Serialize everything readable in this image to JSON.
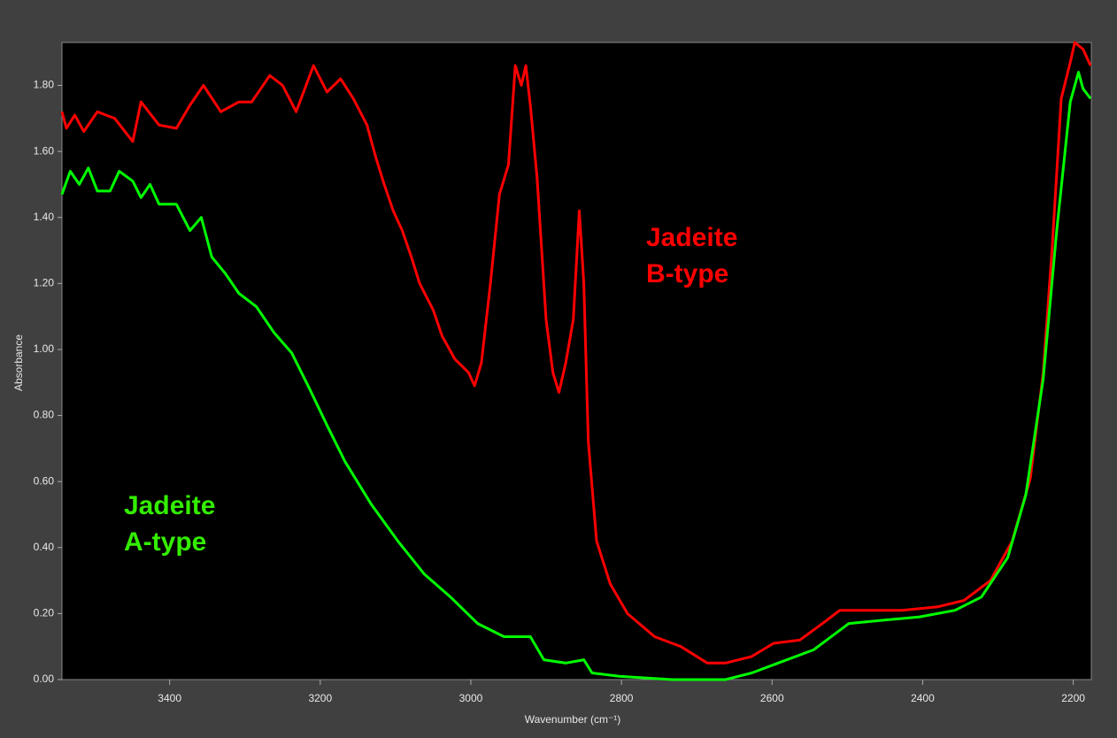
{
  "chart_data": {
    "type": "line",
    "x_label": "Wavenumber (cm⁻¹)",
    "y_label": "Absorbance",
    "xlim": [
      3543,
      2176
    ],
    "ylim": [
      0,
      1.93
    ],
    "xticks": [
      3400,
      3200,
      3000,
      2800,
      2600,
      2400,
      2200
    ],
    "yticks": [
      {
        "value": 0,
        "label": "0.00"
      },
      {
        "value": 0.2,
        "label": "0.20"
      },
      {
        "value": 0.4,
        "label": "0.40"
      },
      {
        "value": 0.6,
        "label": "0.60"
      },
      {
        "value": 0.8,
        "label": "0.80"
      },
      {
        "value": 1.0,
        "label": "1.00"
      },
      {
        "value": 1.2,
        "label": "1.20"
      },
      {
        "value": 1.4,
        "label": "1.40"
      },
      {
        "value": 1.6,
        "label": "1.60"
      },
      {
        "value": 1.8,
        "label": "1.80"
      }
    ],
    "series": [
      {
        "color": "#ff0000",
        "x": [
          3543,
          3537,
          3526,
          3514,
          3496,
          3473,
          3449,
          3438,
          3414,
          3391,
          3373,
          3355,
          3332,
          3308,
          3291,
          3267,
          3250,
          3232,
          3209,
          3191,
          3173,
          3156,
          3138,
          3126,
          3115,
          3103,
          3091,
          3079,
          3068,
          3050,
          3038,
          3021,
          3003,
          2995,
          2986,
          2974,
          2962,
          2950,
          2941,
          2933,
          2927,
          2921,
          2912,
          2900,
          2891,
          2883,
          2874,
          2864,
          2856,
          2850,
          2844,
          2833,
          2815,
          2792,
          2756,
          2721,
          2686,
          2662,
          2627,
          2598,
          2563,
          2533,
          2510,
          2480,
          2451,
          2428,
          2381,
          2345,
          2310,
          2281,
          2257,
          2240,
          2228,
          2216,
          2204,
          2198,
          2187,
          2177
        ],
        "values": [
          1.72,
          1.67,
          1.71,
          1.66,
          1.72,
          1.7,
          1.63,
          1.75,
          1.68,
          1.67,
          1.74,
          1.8,
          1.72,
          1.75,
          1.75,
          1.83,
          1.8,
          1.72,
          1.86,
          1.78,
          1.82,
          1.76,
          1.68,
          1.58,
          1.5,
          1.42,
          1.36,
          1.28,
          1.2,
          1.12,
          1.04,
          0.97,
          0.93,
          0.89,
          0.96,
          1.2,
          1.47,
          1.56,
          1.86,
          1.8,
          1.86,
          1.74,
          1.52,
          1.09,
          0.93,
          0.87,
          0.96,
          1.09,
          1.42,
          1.2,
          0.72,
          0.42,
          0.29,
          0.2,
          0.13,
          0.1,
          0.05,
          0.05,
          0.07,
          0.11,
          0.12,
          0.17,
          0.21,
          0.21,
          0.21,
          0.21,
          0.22,
          0.24,
          0.3,
          0.42,
          0.61,
          0.93,
          1.31,
          1.76,
          1.87,
          1.93,
          1.91,
          1.86
        ]
      },
      {
        "color": "#00ff00",
        "x": [
          3543,
          3532,
          3520,
          3508,
          3496,
          3479,
          3467,
          3449,
          3438,
          3426,
          3414,
          3391,
          3373,
          3358,
          3344,
          3326,
          3308,
          3285,
          3261,
          3238,
          3214,
          3191,
          3167,
          3132,
          3097,
          3062,
          3027,
          2991,
          2956,
          2921,
          2903,
          2874,
          2850,
          2839,
          2803,
          2733,
          2662,
          2627,
          2592,
          2545,
          2498,
          2451,
          2404,
          2357,
          2322,
          2287,
          2263,
          2240,
          2222,
          2204,
          2193,
          2187,
          2177
        ],
        "values": [
          1.47,
          1.54,
          1.5,
          1.55,
          1.48,
          1.48,
          1.54,
          1.51,
          1.46,
          1.5,
          1.44,
          1.44,
          1.36,
          1.4,
          1.28,
          1.23,
          1.17,
          1.13,
          1.05,
          0.99,
          0.88,
          0.77,
          0.66,
          0.53,
          0.42,
          0.32,
          0.25,
          0.17,
          0.13,
          0.13,
          0.06,
          0.05,
          0.06,
          0.02,
          0.01,
          0.0,
          0.0,
          0.02,
          0.05,
          0.09,
          0.17,
          0.18,
          0.19,
          0.21,
          0.25,
          0.37,
          0.56,
          0.91,
          1.36,
          1.75,
          1.84,
          1.79,
          1.76
        ]
      }
    ],
    "annotations": [
      {
        "lines": [
          "Jadeite",
          "B-type"
        ],
        "color": "#ff0000"
      },
      {
        "lines": [
          "Jadeite",
          "A-type"
        ],
        "color": "#33ee00"
      }
    ]
  }
}
